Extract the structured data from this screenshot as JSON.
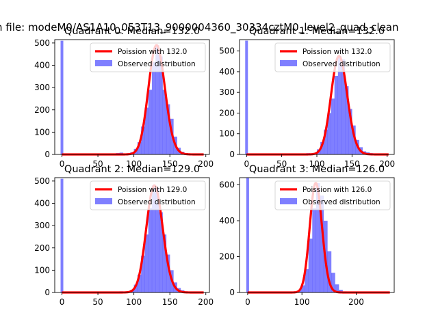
{
  "figure": {
    "suptitle": "n file: modeM0/AS1A10_053T13_9000004360_30334cztM0_level2_quad_clean"
  },
  "chart_data": [
    {
      "type": "bar",
      "title": "Quadrant 0: Median=132.0",
      "xlim": [
        -10,
        205
      ],
      "ylim": [
        0,
        515
      ],
      "xticks": [
        0,
        50,
        100,
        150,
        200
      ],
      "yticks": [
        0,
        100,
        200,
        300,
        400,
        500
      ],
      "legend": {
        "position": "top-right",
        "entries": [
          "Poission with 132.0",
          "Observed distribution"
        ]
      },
      "poisson_mean": 132.0,
      "hist": {
        "series": "Observed distribution",
        "spike": {
          "x": 0,
          "value": 510
        },
        "bins": [
          {
            "x": 75,
            "value": 6
          },
          {
            "x": 80,
            "value": 8
          },
          {
            "x": 85,
            "value": 4
          },
          {
            "x": 90,
            "value": 5
          },
          {
            "x": 95,
            "value": 10
          },
          {
            "x": 100,
            "value": 25
          },
          {
            "x": 105,
            "value": 55
          },
          {
            "x": 110,
            "value": 125
          },
          {
            "x": 115,
            "value": 210
          },
          {
            "x": 120,
            "value": 290
          },
          {
            "x": 125,
            "value": 415
          },
          {
            "x": 130,
            "value": 490
          },
          {
            "x": 135,
            "value": 440
          },
          {
            "x": 140,
            "value": 290
          },
          {
            "x": 145,
            "value": 225
          },
          {
            "x": 150,
            "value": 160
          },
          {
            "x": 155,
            "value": 80
          },
          {
            "x": 160,
            "value": 30
          },
          {
            "x": 165,
            "value": 12
          },
          {
            "x": 170,
            "value": 6
          },
          {
            "x": 175,
            "value": 3
          },
          {
            "x": 180,
            "value": 2
          },
          {
            "x": 185,
            "value": 1
          },
          {
            "x": 190,
            "value": 1
          }
        ]
      }
    },
    {
      "type": "bar",
      "title": "Quadrant 1: Median=132.0",
      "xlim": [
        -10,
        210
      ],
      "ylim": [
        0,
        555
      ],
      "xticks": [
        0,
        50,
        100,
        150,
        200
      ],
      "yticks": [
        0,
        100,
        200,
        300,
        400,
        500
      ],
      "legend": {
        "position": "top-right",
        "entries": [
          "Poission with 132.0",
          "Observed distribution"
        ]
      },
      "poisson_mean": 132.0,
      "hist": {
        "series": "Observed distribution",
        "spike": {
          "x": 0,
          "value": 550
        },
        "bins": [
          {
            "x": 80,
            "value": 4
          },
          {
            "x": 85,
            "value": 6
          },
          {
            "x": 90,
            "value": 5
          },
          {
            "x": 95,
            "value": 8
          },
          {
            "x": 100,
            "value": 25
          },
          {
            "x": 105,
            "value": 60
          },
          {
            "x": 110,
            "value": 120
          },
          {
            "x": 115,
            "value": 200
          },
          {
            "x": 120,
            "value": 270
          },
          {
            "x": 125,
            "value": 380
          },
          {
            "x": 130,
            "value": 475
          },
          {
            "x": 135,
            "value": 460
          },
          {
            "x": 140,
            "value": 330
          },
          {
            "x": 145,
            "value": 220
          },
          {
            "x": 150,
            "value": 140
          },
          {
            "x": 155,
            "value": 70
          },
          {
            "x": 160,
            "value": 35
          },
          {
            "x": 165,
            "value": 15
          },
          {
            "x": 170,
            "value": 10
          },
          {
            "x": 175,
            "value": 6
          },
          {
            "x": 180,
            "value": 4
          },
          {
            "x": 185,
            "value": 2
          },
          {
            "x": 190,
            "value": 1
          },
          {
            "x": 195,
            "value": 1
          }
        ]
      }
    },
    {
      "type": "bar",
      "title": "Quadrant 2: Median=129.0",
      "xlim": [
        -10,
        205
      ],
      "ylim": [
        0,
        515
      ],
      "xticks": [
        0,
        50,
        100,
        150,
        200
      ],
      "yticks": [
        0,
        100,
        200,
        300,
        400,
        500
      ],
      "legend": {
        "position": "top-right",
        "entries": [
          "Poission with 129.0",
          "Observed distribution"
        ]
      },
      "poisson_mean": 129.0,
      "hist": {
        "series": "Observed distribution",
        "spike": {
          "x": 0,
          "value": 510
        },
        "bins": [
          {
            "x": 75,
            "value": 3
          },
          {
            "x": 80,
            "value": 5
          },
          {
            "x": 85,
            "value": 4
          },
          {
            "x": 90,
            "value": 6
          },
          {
            "x": 95,
            "value": 12
          },
          {
            "x": 100,
            "value": 35
          },
          {
            "x": 105,
            "value": 80
          },
          {
            "x": 110,
            "value": 165
          },
          {
            "x": 115,
            "value": 260
          },
          {
            "x": 120,
            "value": 380
          },
          {
            "x": 125,
            "value": 480
          },
          {
            "x": 130,
            "value": 470
          },
          {
            "x": 135,
            "value": 360
          },
          {
            "x": 140,
            "value": 260
          },
          {
            "x": 145,
            "value": 170
          },
          {
            "x": 150,
            "value": 100
          },
          {
            "x": 155,
            "value": 45
          },
          {
            "x": 160,
            "value": 20
          },
          {
            "x": 165,
            "value": 10
          },
          {
            "x": 170,
            "value": 5
          },
          {
            "x": 175,
            "value": 3
          },
          {
            "x": 180,
            "value": 2
          },
          {
            "x": 185,
            "value": 1
          },
          {
            "x": 190,
            "value": 1
          }
        ]
      }
    },
    {
      "type": "bar",
      "title": "Quadrant 3: Median=126.0",
      "xlim": [
        -15,
        270
      ],
      "ylim": [
        0,
        640
      ],
      "xticks": [
        0,
        100,
        200
      ],
      "yticks": [
        0,
        200,
        400,
        600
      ],
      "legend": {
        "position": "top-right",
        "entries": [
          "Poission with 126.0",
          "Observed distribution"
        ]
      },
      "poisson_mean": 126.0,
      "hist": {
        "series": "Observed distribution",
        "spike": {
          "x": 0,
          "value": 640
        },
        "bins": [
          {
            "x": 70,
            "value": 3
          },
          {
            "x": 77,
            "value": 5
          },
          {
            "x": 84,
            "value": 6
          },
          {
            "x": 91,
            "value": 10
          },
          {
            "x": 98,
            "value": 40
          },
          {
            "x": 105,
            "value": 130
          },
          {
            "x": 112,
            "value": 300
          },
          {
            "x": 119,
            "value": 470
          },
          {
            "x": 126,
            "value": 610
          },
          {
            "x": 133,
            "value": 540
          },
          {
            "x": 140,
            "value": 400
          },
          {
            "x": 147,
            "value": 230
          },
          {
            "x": 154,
            "value": 110
          },
          {
            "x": 161,
            "value": 45
          },
          {
            "x": 168,
            "value": 15
          },
          {
            "x": 175,
            "value": 6
          },
          {
            "x": 182,
            "value": 3
          },
          {
            "x": 189,
            "value": 2
          },
          {
            "x": 196,
            "value": 1
          },
          {
            "x": 203,
            "value": 1
          }
        ]
      }
    }
  ]
}
